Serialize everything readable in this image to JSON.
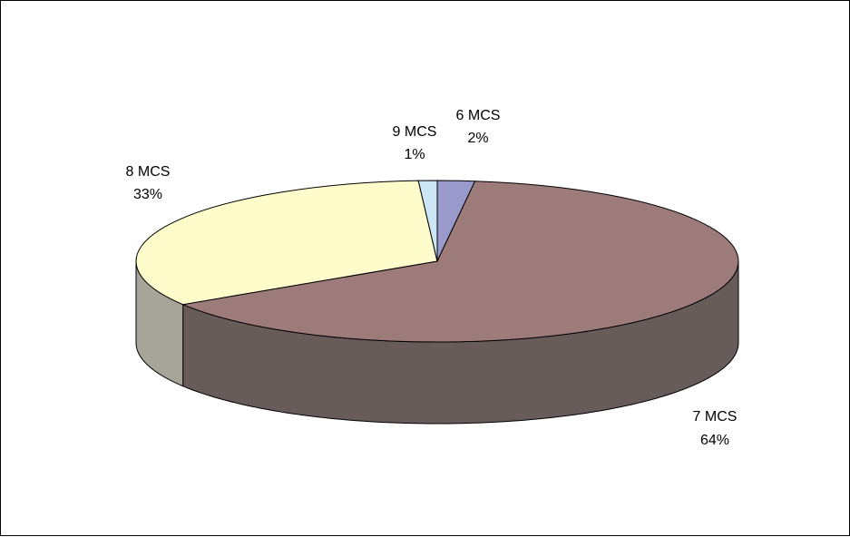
{
  "chart_data": {
    "type": "pie",
    "title": "",
    "three_d": true,
    "legend": "none",
    "slices": [
      {
        "name": "6 MCS",
        "value": 2,
        "pct_label": "2%",
        "top_color": "#9999cc",
        "side_color": "#7a7aa3"
      },
      {
        "name": "7 MCS",
        "value": 64,
        "pct_label": "64%",
        "top_color": "#9e7b7b",
        "side_color": "#675c5a"
      },
      {
        "name": "8 MCS",
        "value": 33,
        "pct_label": "33%",
        "top_color": "#fffccc",
        "side_color": "#a7a49a"
      },
      {
        "name": "9 MCS",
        "value": 1,
        "pct_label": "1%",
        "top_color": "#cce6f5",
        "side_color": "#8fa8b8"
      }
    ]
  },
  "colors": {
    "outline": "#000000",
    "background": "#ffffff"
  }
}
